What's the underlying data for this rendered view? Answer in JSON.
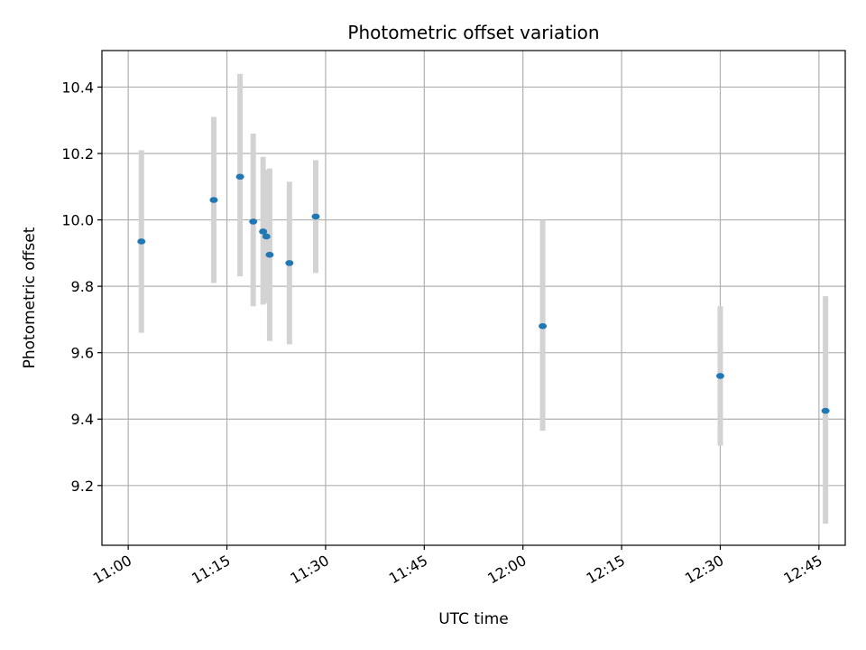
{
  "chart_data": {
    "type": "scatter",
    "title": "Photometric offset variation",
    "xlabel": "UTC time",
    "ylabel": "Photometric offset",
    "x_range": [
      "10:56",
      "12:49"
    ],
    "ylim": [
      9.02,
      10.51
    ],
    "x_ticks": [
      "11:00",
      "11:15",
      "11:30",
      "11:45",
      "12:00",
      "12:15",
      "12:30",
      "12:45"
    ],
    "y_ticks": [
      9.2,
      9.4,
      9.6,
      9.8,
      10.0,
      10.2,
      10.4
    ],
    "y_tick_labels": [
      "9.2",
      "9.4",
      "9.6",
      "9.8",
      "10.0",
      "10.2",
      "10.4"
    ],
    "grid": true,
    "point_color": "#1f77b4",
    "errorbar_color": "#d3d3d3",
    "points": [
      {
        "x": "11:02",
        "y": 9.935,
        "low": 9.66,
        "high": 10.21
      },
      {
        "x": "11:13",
        "y": 10.06,
        "low": 9.81,
        "high": 10.31
      },
      {
        "x": "11:17",
        "y": 10.13,
        "low": 9.83,
        "high": 10.44
      },
      {
        "x": "11:19",
        "y": 9.995,
        "low": 9.74,
        "high": 10.26
      },
      {
        "x": "11:20:30",
        "y": 9.965,
        "low": 9.745,
        "high": 10.19
      },
      {
        "x": "11:21",
        "y": 9.95,
        "low": 9.75,
        "high": 10.15
      },
      {
        "x": "11:21:30",
        "y": 9.895,
        "low": 9.635,
        "high": 10.155
      },
      {
        "x": "11:24:30",
        "y": 9.87,
        "low": 9.625,
        "high": 10.115
      },
      {
        "x": "11:28:30",
        "y": 10.01,
        "low": 9.84,
        "high": 10.18
      },
      {
        "x": "12:03",
        "y": 9.68,
        "low": 9.365,
        "high": 10.0
      },
      {
        "x": "12:30",
        "y": 9.53,
        "low": 9.32,
        "high": 9.74
      },
      {
        "x": "12:46",
        "y": 9.425,
        "low": 9.085,
        "high": 9.77
      }
    ]
  }
}
